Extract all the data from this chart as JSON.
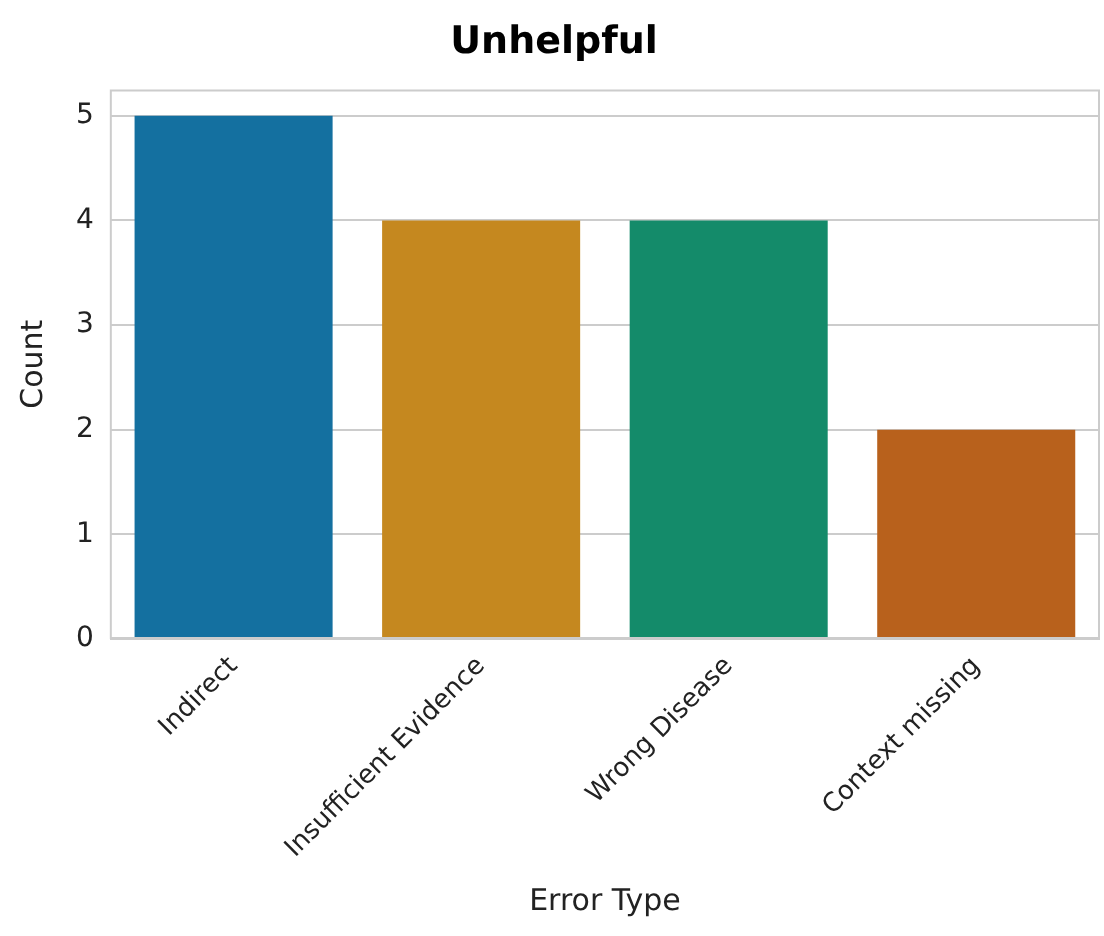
{
  "chart_data": {
    "type": "bar",
    "title": "Unhelpful",
    "xlabel": "Error Type",
    "ylabel": "Count",
    "categories": [
      "Indirect",
      "Insufficient Evidence",
      "Wrong Disease",
      "Context missing"
    ],
    "values": [
      5,
      4,
      4,
      2
    ],
    "colors": [
      "#1470a0",
      "#c5881f",
      "#148b6a",
      "#b8611c"
    ],
    "ylim": [
      0,
      5.25
    ],
    "yticks": [
      0,
      1,
      2,
      3,
      4,
      5
    ],
    "grid": "y",
    "legend": false
  }
}
